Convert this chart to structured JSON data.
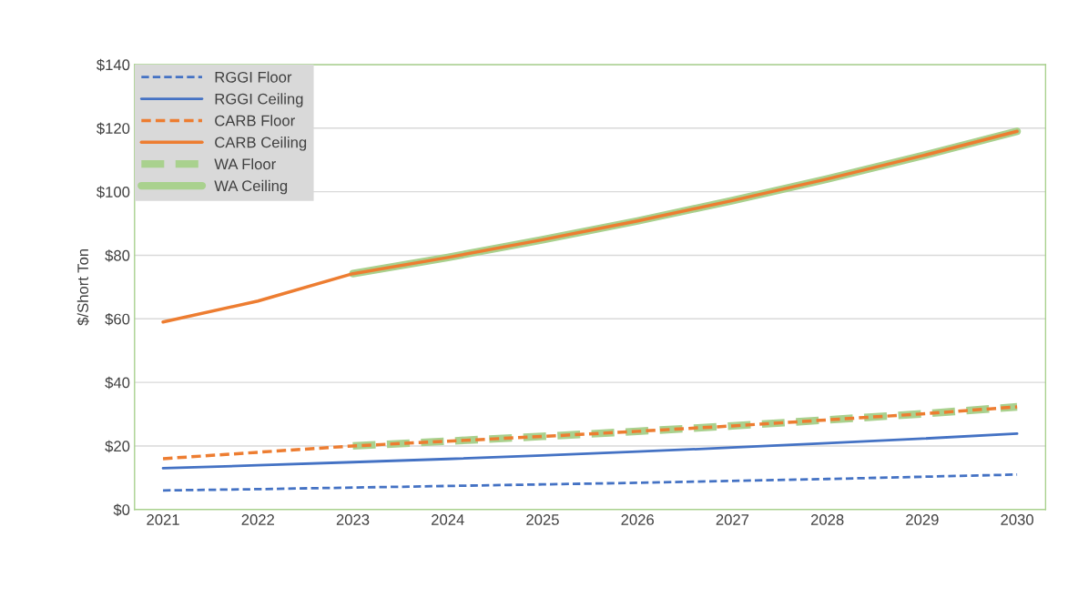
{
  "chart_data": {
    "type": "line",
    "ylabel": "$/Short Ton",
    "categories": [
      "2021",
      "2022",
      "2023",
      "2024",
      "2025",
      "2026",
      "2027",
      "2028",
      "2029",
      "2030"
    ],
    "series": [
      {
        "name": "RGGI Floor",
        "color": "#4472c4",
        "line_style": "dashed",
        "values": [
          6.0,
          6.4,
          6.9,
          7.4,
          7.9,
          8.4,
          9.0,
          9.6,
          10.3,
          11.0
        ]
      },
      {
        "name": "RGGI Ceiling",
        "color": "#4472c4",
        "line_style": "solid",
        "values": [
          13.0,
          13.9,
          14.9,
          15.9,
          17.0,
          18.2,
          19.5,
          20.9,
          22.3,
          23.9
        ]
      },
      {
        "name": "CARB Floor",
        "color": "#ed7d31",
        "line_style": "dashed",
        "values": [
          16.0,
          18.0,
          20.0,
          21.5,
          23.0,
          24.6,
          26.3,
          28.2,
          30.1,
          32.3
        ]
      },
      {
        "name": "CARB Ceiling",
        "color": "#ed7d31",
        "line_style": "solid",
        "values": [
          59.0,
          65.6,
          74.2,
          79.3,
          84.9,
          90.8,
          97.2,
          104.0,
          111.3,
          119.0
        ]
      },
      {
        "name": "WA Floor",
        "color": "#a9d18e",
        "line_style": "dashed",
        "values": [
          null,
          null,
          20.0,
          21.5,
          23.0,
          24.6,
          26.3,
          28.2,
          30.1,
          32.3
        ]
      },
      {
        "name": "WA Ceiling",
        "color": "#a9d18e",
        "line_style": "solid",
        "values": [
          null,
          null,
          74.2,
          79.3,
          84.9,
          90.8,
          97.2,
          104.0,
          111.3,
          119.0
        ]
      }
    ],
    "ylim": [
      0,
      140
    ],
    "yticks": [
      {
        "value": 0,
        "label": "$0"
      },
      {
        "value": 20,
        "label": "$20"
      },
      {
        "value": 40,
        "label": "$40"
      },
      {
        "value": 60,
        "label": "$60"
      },
      {
        "value": 80,
        "label": "$80"
      },
      {
        "value": 100,
        "label": "$100"
      },
      {
        "value": 120,
        "label": "$120"
      },
      {
        "value": 140,
        "label": "$140"
      }
    ],
    "grid": "y",
    "legend": "top left"
  }
}
